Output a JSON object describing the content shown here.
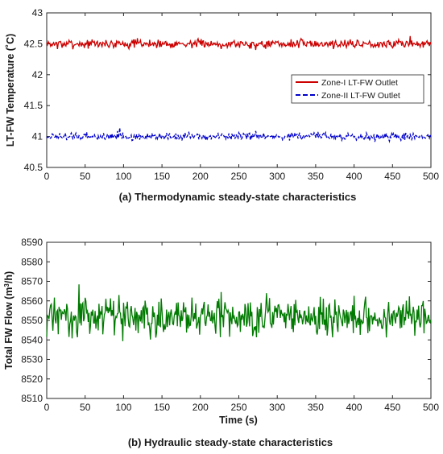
{
  "chart_data": [
    {
      "type": "line",
      "caption": "(a)  Thermodynamic  steady-state  characteristics",
      "ylabel": "LT-FW  Temperature  (˚C)",
      "xlabel": "",
      "xlim": [
        0,
        500
      ],
      "ylim": [
        40.5,
        43
      ],
      "xticks": [
        "0",
        "50",
        "100",
        "150",
        "200",
        "250",
        "300",
        "350",
        "400",
        "450",
        "500"
      ],
      "yticks": [
        "40.5",
        "41",
        "41.5",
        "42",
        "42.5",
        "43"
      ],
      "grid": false,
      "legend_position": "center-right",
      "series": [
        {
          "name": "Zone-I LT-FW Outlet",
          "color": "#cc0000",
          "dash": "solid",
          "mean": 42.5,
          "amplitude": 0.1,
          "seed": 7,
          "legend_label": "Zone-I LT-FW Outlet"
        },
        {
          "name": "Zone-II LT-FW  Outlet",
          "color": "#0000cc",
          "dash": "dashed",
          "mean": 41.0,
          "amplitude": 0.09,
          "seed": 19,
          "legend_label": "Zone-II LT-FW  Outlet"
        }
      ]
    },
    {
      "type": "line",
      "caption": "(b)  Hydraulic  steady-state  characteristics",
      "ylabel_prefix": "Total  FW  Flow  (m",
      "ylabel_sup": "3",
      "ylabel_suffix": "/h)",
      "xlabel": "Time (s)",
      "xlim": [
        0,
        500
      ],
      "ylim": [
        8510,
        8590
      ],
      "xticks": [
        "0",
        "50",
        "100",
        "150",
        "200",
        "250",
        "300",
        "350",
        "400",
        "450",
        "500"
      ],
      "yticks": [
        "8510",
        "8520",
        "8530",
        "8540",
        "8550",
        "8560",
        "8570",
        "8580",
        "8590"
      ],
      "grid": false,
      "series": [
        {
          "name": "",
          "color": "#007a00",
          "dash": "solid",
          "mean": 8552,
          "amplitude": 14,
          "seed": 31
        }
      ]
    }
  ]
}
